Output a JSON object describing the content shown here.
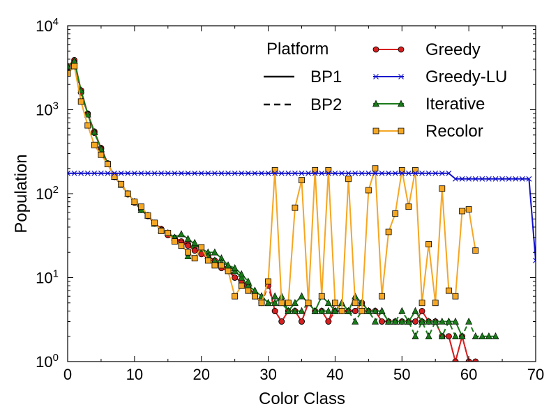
{
  "chart_data": {
    "type": "line",
    "xlabel": "Color Class",
    "ylabel": "Population",
    "yscale": "log",
    "xlim": [
      0,
      70
    ],
    "ylim": [
      1,
      10000
    ],
    "grid": false,
    "legend_placement": "top-right",
    "x_ticks": [
      {
        "value": 0,
        "label": "0"
      },
      {
        "value": 10,
        "label": "10"
      },
      {
        "value": 20,
        "label": "20"
      },
      {
        "value": 30,
        "label": "30"
      },
      {
        "value": 40,
        "label": "40"
      },
      {
        "value": 50,
        "label": "50"
      },
      {
        "value": 60,
        "label": "60"
      },
      {
        "value": 70,
        "label": "70"
      }
    ],
    "y_ticks": [
      {
        "value": 1,
        "base": "10",
        "exp": "0"
      },
      {
        "value": 10,
        "base": "10",
        "exp": "1"
      },
      {
        "value": 100,
        "base": "10",
        "exp": "2"
      },
      {
        "value": 1000,
        "base": "10",
        "exp": "3"
      },
      {
        "value": 10000,
        "base": "10",
        "exp": "4"
      }
    ],
    "platform_legend": {
      "title": "Platform",
      "entries": [
        {
          "name": "BP1",
          "dash": "solid"
        },
        {
          "name": "BP2",
          "dash": "dashed"
        }
      ]
    },
    "series": [
      {
        "name": "Greedy",
        "color": "#d62020",
        "marker": "circle",
        "platform": "BP1",
        "x": [
          0,
          1,
          2,
          3,
          4,
          5,
          6,
          7,
          8,
          9,
          10,
          11,
          12,
          13,
          14,
          15,
          16,
          17,
          18,
          19,
          20,
          21,
          22,
          23,
          24,
          25,
          26,
          27,
          28,
          29,
          30,
          31,
          32,
          33,
          34,
          35,
          36,
          37,
          38,
          39,
          40,
          41,
          42,
          43,
          44,
          45,
          46,
          47,
          48,
          49,
          50,
          51,
          52,
          53,
          54,
          55,
          56,
          57,
          58,
          59,
          60,
          61
        ],
        "y": [
          3300,
          3900,
          1700,
          900,
          550,
          350,
          230,
          160,
          130,
          100,
          80,
          65,
          55,
          45,
          38,
          33,
          30,
          27,
          25,
          22,
          20,
          18,
          16,
          14,
          13,
          10,
          9,
          8,
          6,
          5,
          9,
          4,
          3,
          4,
          4,
          3,
          5,
          4,
          4,
          3,
          5,
          4,
          4,
          4,
          5,
          4,
          4,
          3,
          3,
          3,
          3,
          3,
          3,
          4,
          3,
          3,
          2,
          2,
          1,
          2,
          1,
          1
        ]
      },
      {
        "name": "Greedy",
        "color": "#d62020",
        "marker": "circle",
        "platform": "BP2",
        "x": [
          0,
          1,
          2,
          3,
          4,
          5,
          6,
          7,
          8,
          9,
          10,
          11,
          12,
          13,
          14,
          15,
          16,
          17,
          18,
          19,
          20,
          21,
          22,
          23,
          24,
          25,
          26,
          27,
          28,
          29,
          30,
          31,
          32,
          33,
          34,
          35,
          36,
          37,
          38,
          39,
          40,
          41,
          42,
          43,
          44,
          45,
          46,
          47,
          48,
          49,
          50,
          51,
          52,
          53,
          54,
          55,
          56,
          57,
          58,
          59,
          60,
          61
        ],
        "y": [
          3200,
          3700,
          1600,
          880,
          530,
          340,
          225,
          158,
          128,
          98,
          78,
          64,
          54,
          44,
          37,
          32,
          29,
          26,
          24,
          21,
          19,
          17,
          15,
          13,
          12,
          10,
          9,
          7,
          6,
          5,
          8,
          4,
          3,
          4,
          4,
          3,
          5,
          4,
          4,
          3,
          4,
          4,
          4,
          4,
          5,
          4,
          4,
          3,
          3,
          3,
          3,
          3,
          3,
          3,
          3,
          3,
          2,
          2,
          1,
          2,
          1,
          1
        ]
      },
      {
        "name": "Greedy-LU",
        "color": "#1010cc",
        "marker": "x",
        "platform": "BP1",
        "x": [
          0,
          1,
          2,
          3,
          4,
          5,
          6,
          7,
          8,
          9,
          10,
          11,
          12,
          13,
          14,
          15,
          16,
          17,
          18,
          19,
          20,
          21,
          22,
          23,
          24,
          25,
          26,
          27,
          28,
          29,
          30,
          31,
          32,
          33,
          34,
          35,
          36,
          37,
          38,
          39,
          40,
          41,
          42,
          43,
          44,
          45,
          46,
          47,
          48,
          49,
          50,
          51,
          52,
          53,
          54,
          55,
          56,
          57,
          58,
          59,
          60,
          61,
          62,
          63,
          64,
          65,
          66,
          67,
          68,
          69,
          70
        ],
        "y": [
          175,
          175,
          175,
          175,
          175,
          175,
          175,
          175,
          175,
          175,
          175,
          175,
          175,
          175,
          175,
          175,
          175,
          175,
          175,
          175,
          175,
          175,
          175,
          175,
          175,
          175,
          175,
          175,
          175,
          175,
          175,
          175,
          175,
          175,
          175,
          175,
          175,
          175,
          175,
          175,
          175,
          175,
          175,
          175,
          175,
          175,
          175,
          175,
          175,
          175,
          175,
          175,
          175,
          175,
          175,
          175,
          175,
          175,
          150,
          150,
          150,
          150,
          150,
          150,
          150,
          150,
          150,
          150,
          150,
          150,
          16
        ]
      },
      {
        "name": "Iterative",
        "color": "#1a7a1a",
        "marker": "triangle",
        "platform": "BP1",
        "x": [
          0,
          1,
          2,
          3,
          4,
          5,
          6,
          7,
          8,
          9,
          10,
          11,
          12,
          13,
          14,
          15,
          16,
          17,
          18,
          19,
          20,
          21,
          22,
          23,
          24,
          25,
          26,
          27,
          28,
          29,
          30,
          31,
          32,
          33,
          34,
          35,
          36,
          37,
          38,
          39,
          40,
          41,
          42,
          43,
          44,
          45,
          46,
          47,
          48,
          49,
          50,
          51,
          52,
          53,
          54,
          55,
          56,
          57,
          58,
          59
        ],
        "y": [
          3300,
          3800,
          1700,
          880,
          540,
          340,
          225,
          160,
          128,
          100,
          80,
          64,
          55,
          44,
          37,
          34,
          30,
          33,
          29,
          25,
          22,
          20,
          20,
          17,
          14,
          12,
          10,
          8,
          7,
          6,
          5,
          5,
          6,
          4,
          5,
          6,
          5,
          4,
          6,
          5,
          4,
          5,
          4,
          6,
          5,
          4,
          4,
          4,
          3,
          3,
          3,
          3,
          4,
          3,
          3,
          3,
          3,
          3,
          3,
          2
        ]
      },
      {
        "name": "Iterative",
        "color": "#1a7a1a",
        "marker": "triangle",
        "platform": "BP2",
        "x": [
          18,
          19,
          20,
          21,
          22,
          23,
          24,
          25,
          26,
          27,
          28,
          29,
          30,
          31,
          32,
          33,
          34,
          35,
          36,
          37,
          38,
          39,
          40,
          41,
          42,
          43,
          44,
          45,
          46,
          47,
          48,
          49,
          50,
          51,
          52,
          53,
          54,
          55,
          56,
          57,
          58,
          59,
          60,
          61,
          62,
          63,
          64
        ],
        "y": [
          18,
          26,
          22,
          18,
          16,
          15,
          14,
          13,
          11,
          9,
          7,
          6,
          5,
          6,
          5,
          4,
          4,
          4,
          5,
          4,
          4,
          4,
          4,
          5,
          4,
          3,
          4,
          4,
          3,
          4,
          3,
          3,
          4,
          3,
          2,
          3,
          2,
          3,
          2,
          3,
          2,
          2,
          3,
          2,
          2,
          2,
          2
        ]
      },
      {
        "name": "Recolor",
        "color": "#f5a623",
        "marker": "square",
        "platform": "BP1",
        "x": [
          0,
          1,
          2,
          3,
          4,
          5,
          6,
          7,
          8,
          9,
          10,
          11,
          12,
          13,
          14,
          15,
          16,
          17,
          18,
          19,
          20,
          21,
          22,
          23,
          24,
          25,
          26,
          27,
          28,
          29,
          30,
          31,
          32,
          33,
          34,
          35,
          36,
          37,
          38,
          39,
          40,
          41,
          42,
          43,
          44,
          45,
          46,
          47,
          48,
          49,
          50,
          51,
          52,
          53,
          54,
          55,
          56,
          57,
          58,
          59,
          60,
          61
        ],
        "y": [
          2700,
          3300,
          1250,
          650,
          380,
          290,
          225,
          160,
          130,
          100,
          80,
          70,
          55,
          45,
          36,
          34,
          27,
          24,
          20,
          17,
          23,
          16,
          14,
          14,
          12,
          6,
          8,
          7,
          6,
          5,
          9,
          190,
          5,
          5,
          68,
          145,
          5,
          190,
          6,
          190,
          5,
          4,
          150,
          5,
          4,
          110,
          200,
          6,
          35,
          58,
          190,
          70,
          190,
          5,
          25,
          5,
          115,
          7,
          6,
          62,
          65,
          21
        ]
      }
    ],
    "legend": [
      {
        "name": "Greedy"
      },
      {
        "name": "Greedy-LU"
      },
      {
        "name": "Iterative"
      },
      {
        "name": "Recolor"
      }
    ]
  }
}
